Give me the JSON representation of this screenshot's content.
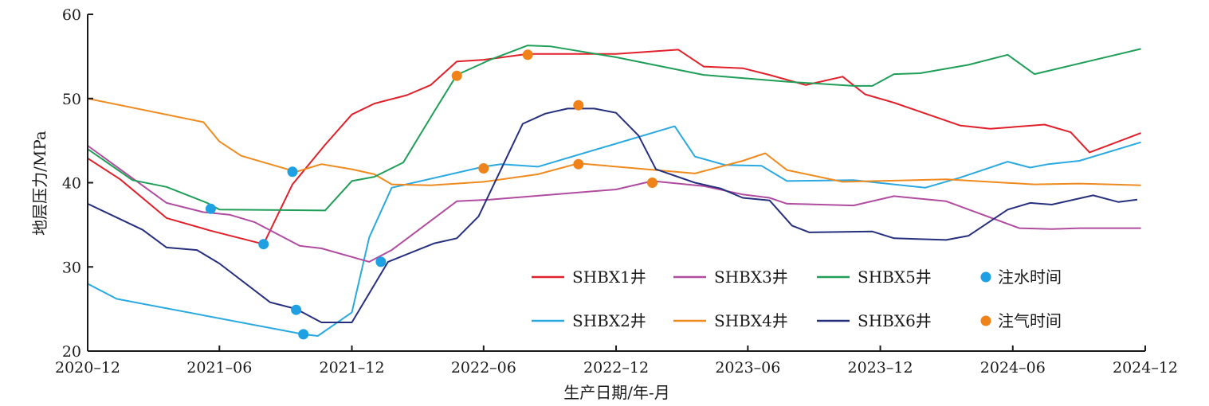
{
  "chart_data": {
    "type": "line",
    "title": "",
    "xlabel": "生产日期/年-月",
    "ylabel": "地层压力/MPa",
    "xlim": [
      "2020-12",
      "2024-12"
    ],
    "ylim": [
      20,
      60
    ],
    "x_ticks": [
      "2020-12",
      "2021-06",
      "2021-12",
      "2022-06",
      "2022-12",
      "2023-06",
      "2023-12",
      "2024-06",
      "2024-12"
    ],
    "y_ticks": [
      20,
      30,
      40,
      50,
      60
    ],
    "grid": false,
    "legend_position": "bottom-right",
    "series": [
      {
        "name": "SHBX1井",
        "color": "#e0202a",
        "points": [
          [
            "2020-12-01",
            42.9
          ],
          [
            "2021-01-15",
            40.4
          ],
          [
            "2021-03-20",
            35.8
          ],
          [
            "2021-05-20",
            34.3
          ],
          [
            "2021-08-01",
            32.7
          ],
          [
            "2021-09-10",
            39.8
          ],
          [
            "2021-10-25",
            44.5
          ],
          [
            "2021-12-01",
            48.1
          ],
          [
            "2022-01-01",
            49.4
          ],
          [
            "2022-02-15",
            50.4
          ],
          [
            "2022-03-20",
            51.6
          ],
          [
            "2022-04-25",
            54.4
          ],
          [
            "2022-06-01",
            54.6
          ],
          [
            "2022-08-01",
            55.3
          ],
          [
            "2022-12-01",
            55.3
          ],
          [
            "2023-02-25",
            55.8
          ],
          [
            "2023-04-01",
            53.8
          ],
          [
            "2023-05-25",
            53.6
          ],
          [
            "2023-07-01",
            52.8
          ],
          [
            "2023-08-20",
            51.6
          ],
          [
            "2023-10-10",
            52.6
          ],
          [
            "2023-11-10",
            50.5
          ],
          [
            "2023-12-20",
            49.5
          ],
          [
            "2024-03-20",
            46.8
          ],
          [
            "2024-05-01",
            46.4
          ],
          [
            "2024-07-15",
            46.9
          ],
          [
            "2024-08-20",
            46.0
          ],
          [
            "2024-09-15",
            43.6
          ],
          [
            "2024-11-25",
            45.9
          ]
        ]
      },
      {
        "name": "SHBX2井",
        "color": "#29a9e0",
        "points": [
          [
            "2020-12-01",
            28.0
          ],
          [
            "2021-01-10",
            26.2
          ],
          [
            "2021-09-25",
            22.0
          ],
          [
            "2021-10-15",
            21.8
          ],
          [
            "2021-12-01",
            24.6
          ],
          [
            "2021-12-25",
            33.5
          ],
          [
            "2022-01-25",
            39.4
          ],
          [
            "2022-06-01",
            41.9
          ],
          [
            "2022-06-25",
            42.2
          ],
          [
            "2022-08-15",
            41.9
          ],
          [
            "2023-02-20",
            46.7
          ],
          [
            "2023-03-20",
            43.1
          ],
          [
            "2023-05-01",
            42.1
          ],
          [
            "2023-06-20",
            42.0
          ],
          [
            "2023-07-25",
            40.2
          ],
          [
            "2023-10-25",
            40.3
          ],
          [
            "2024-02-01",
            39.4
          ],
          [
            "2024-03-20",
            40.6
          ],
          [
            "2024-05-25",
            42.5
          ],
          [
            "2024-06-25",
            41.8
          ],
          [
            "2024-07-20",
            42.2
          ],
          [
            "2024-09-01",
            42.6
          ],
          [
            "2024-11-25",
            44.8
          ]
        ]
      },
      {
        "name": "SHBX3井",
        "color": "#b04ca0",
        "points": [
          [
            "2020-12-01",
            44.4
          ],
          [
            "2021-03-20",
            37.6
          ],
          [
            "2021-05-10",
            36.5
          ],
          [
            "2021-06-15",
            36.2
          ],
          [
            "2021-07-20",
            35.3
          ],
          [
            "2021-09-20",
            32.5
          ],
          [
            "2021-10-20",
            32.2
          ],
          [
            "2021-12-25",
            30.6
          ],
          [
            "2022-01-25",
            32.0
          ],
          [
            "2022-04-25",
            37.8
          ],
          [
            "2022-06-10",
            38.0
          ],
          [
            "2022-12-01",
            39.2
          ],
          [
            "2023-01-20",
            40.2
          ],
          [
            "2023-04-01",
            39.6
          ],
          [
            "2023-05-25",
            38.6
          ],
          [
            "2023-07-01",
            38.2
          ],
          [
            "2023-07-25",
            37.5
          ],
          [
            "2023-10-25",
            37.3
          ],
          [
            "2023-12-20",
            38.4
          ],
          [
            "2024-03-01",
            37.8
          ],
          [
            "2024-06-10",
            34.6
          ],
          [
            "2024-07-25",
            34.5
          ],
          [
            "2024-09-01",
            34.6
          ],
          [
            "2024-11-25",
            34.6
          ]
        ]
      },
      {
        "name": "SHBX4井",
        "color": "#ef8a1e",
        "points": [
          [
            "2020-12-01",
            50.0
          ],
          [
            "2021-05-10",
            47.2
          ],
          [
            "2021-06-01",
            44.9
          ],
          [
            "2021-07-01",
            43.2
          ],
          [
            "2021-09-15",
            41.3
          ],
          [
            "2021-10-20",
            42.2
          ],
          [
            "2021-12-01",
            41.6
          ],
          [
            "2022-01-01",
            41.0
          ],
          [
            "2022-01-25",
            39.8
          ],
          [
            "2022-03-20",
            39.7
          ],
          [
            "2022-06-01",
            40.1
          ],
          [
            "2022-08-15",
            41.0
          ],
          [
            "2022-10-10",
            42.3
          ],
          [
            "2023-03-20",
            41.1
          ],
          [
            "2023-05-25",
            42.6
          ],
          [
            "2023-06-25",
            43.5
          ],
          [
            "2023-07-25",
            41.5
          ],
          [
            "2023-10-10",
            40.1
          ],
          [
            "2024-03-01",
            40.4
          ],
          [
            "2024-07-01",
            39.8
          ],
          [
            "2024-09-01",
            39.9
          ],
          [
            "2024-11-25",
            39.7
          ]
        ]
      },
      {
        "name": "SHBX5井",
        "color": "#1f9e58",
        "points": [
          [
            "2020-12-01",
            44.0
          ],
          [
            "2021-02-01",
            40.3
          ],
          [
            "2021-03-20",
            39.5
          ],
          [
            "2021-05-15",
            37.6
          ],
          [
            "2021-06-01",
            36.8
          ],
          [
            "2021-10-25",
            36.7
          ],
          [
            "2021-12-01",
            40.2
          ],
          [
            "2022-01-01",
            40.7
          ],
          [
            "2022-02-10",
            42.4
          ],
          [
            "2022-03-25",
            48.5
          ],
          [
            "2022-04-25",
            52.8
          ],
          [
            "2022-06-10",
            54.6
          ],
          [
            "2022-08-01",
            56.3
          ],
          [
            "2022-09-01",
            56.2
          ],
          [
            "2022-12-01",
            54.9
          ],
          [
            "2023-04-01",
            52.8
          ],
          [
            "2023-07-25",
            52.0
          ],
          [
            "2023-10-25",
            51.5
          ],
          [
            "2023-11-20",
            51.5
          ],
          [
            "2023-12-20",
            52.9
          ],
          [
            "2024-01-25",
            53.0
          ],
          [
            "2024-04-01",
            54.0
          ],
          [
            "2024-05-25",
            55.2
          ],
          [
            "2024-07-01",
            52.9
          ],
          [
            "2024-11-25",
            55.9
          ]
        ]
      },
      {
        "name": "SHBX6井",
        "color": "#262f7e",
        "points": [
          [
            "2020-12-01",
            37.5
          ],
          [
            "2021-02-15",
            34.4
          ],
          [
            "2021-03-20",
            32.3
          ],
          [
            "2021-05-01",
            32.0
          ],
          [
            "2021-06-01",
            30.4
          ],
          [
            "2021-08-10",
            25.8
          ],
          [
            "2021-09-15",
            25.0
          ],
          [
            "2021-10-20",
            23.4
          ],
          [
            "2021-12-01",
            23.4
          ],
          [
            "2022-01-20",
            30.6
          ],
          [
            "2022-03-25",
            32.8
          ],
          [
            "2022-04-25",
            33.4
          ],
          [
            "2022-05-25",
            36.0
          ],
          [
            "2022-07-25",
            47.0
          ],
          [
            "2022-08-25",
            48.2
          ],
          [
            "2022-09-25",
            48.8
          ],
          [
            "2022-11-01",
            48.8
          ],
          [
            "2022-12-01",
            48.3
          ],
          [
            "2023-01-01",
            45.6
          ],
          [
            "2023-01-25",
            41.6
          ],
          [
            "2023-03-20",
            40.0
          ],
          [
            "2023-04-25",
            39.3
          ],
          [
            "2023-05-25",
            38.2
          ],
          [
            "2023-07-01",
            37.9
          ],
          [
            "2023-08-01",
            34.9
          ],
          [
            "2023-08-25",
            34.1
          ],
          [
            "2023-11-20",
            34.2
          ],
          [
            "2023-12-20",
            33.4
          ],
          [
            "2024-03-01",
            33.2
          ],
          [
            "2024-04-01",
            33.7
          ],
          [
            "2024-05-25",
            36.8
          ],
          [
            "2024-06-25",
            37.6
          ],
          [
            "2024-07-25",
            37.4
          ],
          [
            "2024-09-20",
            38.5
          ],
          [
            "2024-10-25",
            37.7
          ],
          [
            "2024-11-20",
            38.0
          ]
        ]
      }
    ],
    "markers": [
      {
        "name": "注水时间",
        "color": "#1ea0e2",
        "points": [
          [
            "2021-05-20",
            36.9
          ],
          [
            "2021-08-01",
            32.7
          ],
          [
            "2021-09-10",
            41.3
          ],
          [
            "2021-09-15",
            24.9
          ],
          [
            "2021-09-25",
            22.0
          ],
          [
            "2022-01-10",
            30.6
          ]
        ]
      },
      {
        "name": "注气时间",
        "color": "#ef8218",
        "points": [
          [
            "2022-04-25",
            52.7
          ],
          [
            "2022-06-01",
            41.7
          ],
          [
            "2022-08-01",
            55.2
          ],
          [
            "2022-10-10",
            49.2
          ],
          [
            "2022-10-10",
            42.2
          ],
          [
            "2023-01-20",
            40.0
          ]
        ]
      }
    ],
    "legend": [
      "SHBX1井",
      "SHBX3井",
      "SHBX5井",
      "注水时间",
      "SHBX2井",
      "SHBX4井",
      "SHBX6井",
      "注气时间"
    ]
  }
}
